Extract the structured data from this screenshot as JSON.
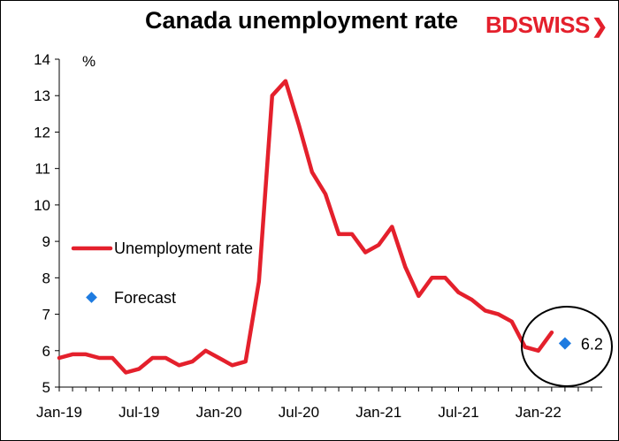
{
  "chart_data": {
    "type": "line",
    "title": "Canada unemployment rate",
    "ylabel": "%",
    "ylim": [
      5,
      14
    ],
    "yticks": [
      "5",
      "6",
      "7",
      "8",
      "9",
      "10",
      "11",
      "12",
      "13",
      "14"
    ],
    "xticks": [
      "Jan-19",
      "Jul-19",
      "Jan-20",
      "Jul-20",
      "Jan-21",
      "Jul-21",
      "Jan-22"
    ],
    "series": [
      {
        "name": "Unemployment rate",
        "color": "#e4202c",
        "x": [
          "2019-01",
          "2019-02",
          "2019-03",
          "2019-04",
          "2019-05",
          "2019-06",
          "2019-07",
          "2019-08",
          "2019-09",
          "2019-10",
          "2019-11",
          "2019-12",
          "2020-01",
          "2020-02",
          "2020-03",
          "2020-04",
          "2020-05",
          "2020-06",
          "2020-07",
          "2020-08",
          "2020-09",
          "2020-10",
          "2020-11",
          "2020-12",
          "2021-01",
          "2021-02",
          "2021-03",
          "2021-04",
          "2021-05",
          "2021-06",
          "2021-07",
          "2021-08",
          "2021-09",
          "2021-10",
          "2021-11",
          "2021-12",
          "2022-01"
        ],
        "values": [
          5.8,
          5.9,
          5.9,
          5.8,
          5.8,
          5.4,
          5.5,
          5.8,
          5.8,
          5.6,
          5.7,
          6.0,
          5.8,
          5.6,
          5.7,
          7.9,
          13.0,
          13.4,
          12.2,
          10.9,
          10.3,
          9.2,
          9.2,
          8.7,
          8.9,
          9.4,
          8.3,
          7.5,
          8.0,
          8.0,
          7.6,
          7.4,
          7.1,
          7.0,
          6.8,
          6.1,
          6.0
        ],
        "extra_x": [
          "2022-02"
        ],
        "extra_values": [
          6.5
        ]
      },
      {
        "name": "Forecast",
        "color": "#1e7be0",
        "x": [
          "2022-03"
        ],
        "values": [
          6.2
        ]
      }
    ],
    "annotations": [
      {
        "text": "6.2",
        "x": "2022-03",
        "y": 6.2
      }
    ],
    "legend": "left-middle"
  }
}
